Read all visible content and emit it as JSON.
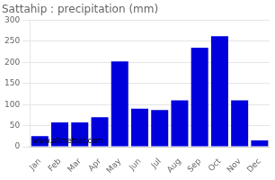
{
  "chart_data": {
    "type": "bar",
    "title": "Sattahip : precipitation (mm)",
    "categories": [
      "Jan",
      "Feb",
      "Mar",
      "Apr",
      "May",
      "Jun",
      "Jul",
      "Aug",
      "Sep",
      "Oct",
      "Nov",
      "Dec"
    ],
    "values": [
      25,
      58,
      58,
      70,
      202,
      90,
      87,
      110,
      235,
      262,
      110,
      15
    ],
    "color": "#0000dd",
    "ylim": [
      0,
      300
    ],
    "yticks": [
      0,
      50,
      100,
      150,
      200,
      250,
      300
    ],
    "grid": true,
    "annotation": "www.allmetsat.com"
  }
}
